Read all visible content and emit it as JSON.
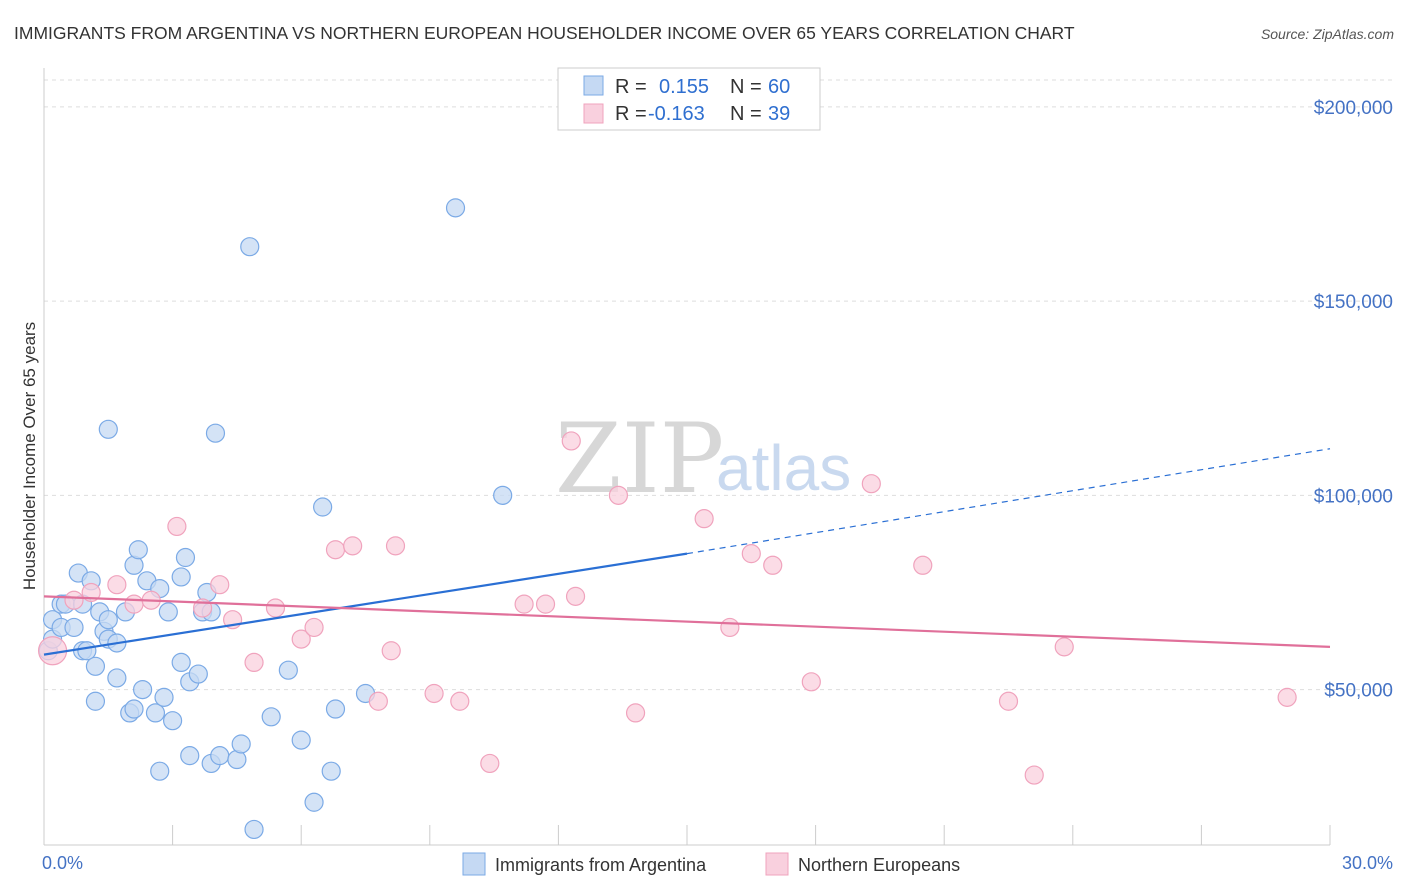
{
  "chart_data": {
    "type": "scatter",
    "title": "IMMIGRANTS FROM ARGENTINA VS NORTHERN EUROPEAN HOUSEHOLDER INCOME OVER 65 YEARS CORRELATION CHART",
    "source": "Source: ZipAtlas.com",
    "ylabel": "Householder Income Over 65 years",
    "xlim": [
      0,
      30
    ],
    "ylim": [
      10000,
      210000
    ],
    "x_tick_labels": [
      "0.0%",
      "30.0%"
    ],
    "y_ticks": [
      {
        "value": 50000,
        "label": "$50,000"
      },
      {
        "value": 100000,
        "label": "$100,000"
      },
      {
        "value": 150000,
        "label": "$150,000"
      },
      {
        "value": 200000,
        "label": "$200,000"
      }
    ],
    "watermark": {
      "zip": "ZIP",
      "atlas": "atlas"
    },
    "legend": {
      "rows": [
        {
          "r_label": "R =",
          "r_value": "0.155",
          "n_label": "N =",
          "n_value": "60"
        },
        {
          "r_label": "R =",
          "r_value": "-0.163",
          "n_label": "N =",
          "n_value": "39"
        }
      ]
    },
    "series": [
      {
        "name": "Immigrants from Argentina",
        "color": "#7baae6",
        "fill": "#c5d9f3",
        "trend": {
          "x0": 0,
          "y0": 59000,
          "x1": 15,
          "y1": 85000,
          "dash_to_x": 30,
          "dash_to_y": 112000,
          "color": "#2a6fd4"
        },
        "points": [
          [
            0.1,
            60000
          ],
          [
            0.2,
            63000
          ],
          [
            0.2,
            68000
          ],
          [
            0.4,
            72000
          ],
          [
            0.4,
            66000
          ],
          [
            0.5,
            72000
          ],
          [
            0.7,
            66000
          ],
          [
            0.8,
            80000
          ],
          [
            0.9,
            72000
          ],
          [
            0.9,
            60000
          ],
          [
            1.0,
            60000
          ],
          [
            1.1,
            78000
          ],
          [
            1.2,
            47000
          ],
          [
            1.2,
            56000
          ],
          [
            1.3,
            70000
          ],
          [
            1.4,
            65000
          ],
          [
            1.5,
            63000
          ],
          [
            1.5,
            68000
          ],
          [
            1.5,
            117000
          ],
          [
            1.7,
            62000
          ],
          [
            1.7,
            53000
          ],
          [
            1.9,
            70000
          ],
          [
            2.0,
            44000
          ],
          [
            2.1,
            45000
          ],
          [
            2.1,
            82000
          ],
          [
            2.2,
            86000
          ],
          [
            2.3,
            50000
          ],
          [
            2.4,
            78000
          ],
          [
            2.6,
            44000
          ],
          [
            2.7,
            76000
          ],
          [
            2.7,
            29000
          ],
          [
            2.8,
            48000
          ],
          [
            2.9,
            70000
          ],
          [
            3.0,
            42000
          ],
          [
            3.2,
            57000
          ],
          [
            3.2,
            79000
          ],
          [
            3.3,
            84000
          ],
          [
            3.4,
            52000
          ],
          [
            3.4,
            33000
          ],
          [
            3.6,
            54000
          ],
          [
            3.7,
            70000
          ],
          [
            3.8,
            75000
          ],
          [
            3.9,
            31000
          ],
          [
            3.9,
            70000
          ],
          [
            4.0,
            116000
          ],
          [
            4.1,
            33000
          ],
          [
            4.5,
            32000
          ],
          [
            4.6,
            36000
          ],
          [
            4.8,
            164000
          ],
          [
            4.9,
            14000
          ],
          [
            5.3,
            43000
          ],
          [
            5.7,
            55000
          ],
          [
            6.0,
            37000
          ],
          [
            6.3,
            21000
          ],
          [
            6.5,
            97000
          ],
          [
            6.7,
            29000
          ],
          [
            6.8,
            45000
          ],
          [
            7.5,
            49000
          ],
          [
            9.6,
            174000
          ],
          [
            10.7,
            100000
          ]
        ]
      },
      {
        "name": "Northern Europeans",
        "color": "#f0a3bd",
        "fill": "#f9d0de",
        "trend": {
          "x0": 0,
          "y0": 74000,
          "x1": 30,
          "y1": 61000,
          "color": "#e0709a"
        },
        "points": [
          [
            0.2,
            60000
          ],
          [
            0.7,
            73000
          ],
          [
            1.1,
            75000
          ],
          [
            1.7,
            77000
          ],
          [
            2.1,
            72000
          ],
          [
            2.5,
            73000
          ],
          [
            3.1,
            92000
          ],
          [
            3.7,
            71000
          ],
          [
            4.1,
            77000
          ],
          [
            4.4,
            68000
          ],
          [
            4.9,
            57000
          ],
          [
            5.4,
            71000
          ],
          [
            6.0,
            63000
          ],
          [
            6.3,
            66000
          ],
          [
            6.8,
            86000
          ],
          [
            7.2,
            87000
          ],
          [
            7.8,
            47000
          ],
          [
            8.2,
            87000
          ],
          [
            8.1,
            60000
          ],
          [
            9.1,
            49000
          ],
          [
            9.7,
            47000
          ],
          [
            10.4,
            31000
          ],
          [
            11.2,
            72000
          ],
          [
            11.7,
            72000
          ],
          [
            12.3,
            114000
          ],
          [
            12.4,
            74000
          ],
          [
            13.4,
            100000
          ],
          [
            13.8,
            44000
          ],
          [
            15.4,
            94000
          ],
          [
            16.0,
            66000
          ],
          [
            16.5,
            85000
          ],
          [
            17.0,
            82000
          ],
          [
            17.9,
            52000
          ],
          [
            19.3,
            103000
          ],
          [
            20.5,
            82000
          ],
          [
            22.5,
            47000
          ],
          [
            23.1,
            28000
          ],
          [
            23.8,
            61000
          ],
          [
            29.0,
            48000
          ]
        ]
      }
    ]
  }
}
